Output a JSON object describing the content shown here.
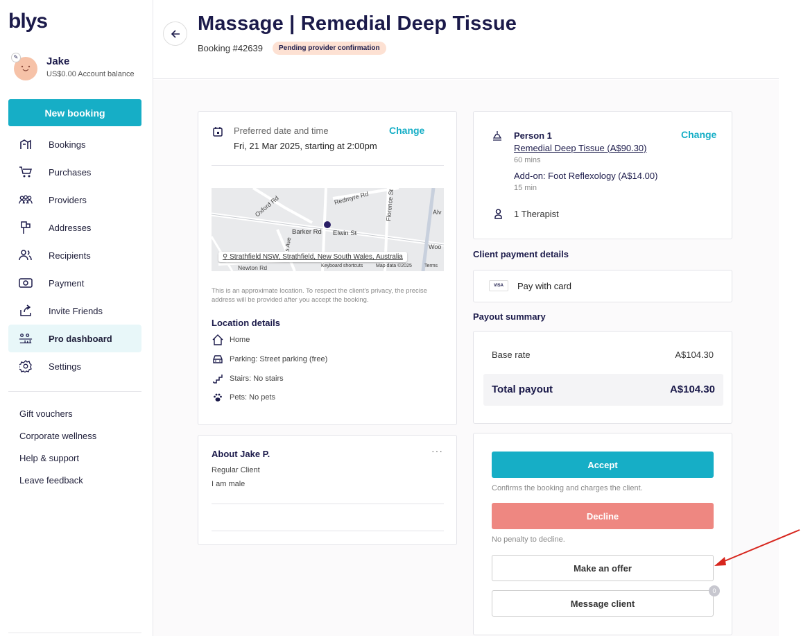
{
  "brand": {
    "logo": "blys",
    "accent": "#16aec6",
    "decline_color": "#ee8781"
  },
  "user": {
    "name": "Jake",
    "balance": "US$0.00 Account balance"
  },
  "sidebar": {
    "new_booking": "New booking",
    "items": [
      {
        "label": "Bookings",
        "icon": "bookings-icon"
      },
      {
        "label": "Purchases",
        "icon": "cart-icon"
      },
      {
        "label": "Providers",
        "icon": "providers-icon"
      },
      {
        "label": "Addresses",
        "icon": "mailbox-icon"
      },
      {
        "label": "Recipients",
        "icon": "users-icon"
      },
      {
        "label": "Payment",
        "icon": "payment-icon"
      },
      {
        "label": "Invite Friends",
        "icon": "share-icon"
      },
      {
        "label": "Pro dashboard",
        "icon": "dashboard-icon",
        "active": true
      },
      {
        "label": "Settings",
        "icon": "gear-icon"
      }
    ],
    "links": [
      "Gift vouchers",
      "Corporate wellness",
      "Help & support",
      "Leave feedback"
    ]
  },
  "header": {
    "title": "Massage | Remedial Deep Tissue",
    "booking_no": "Booking #42639",
    "status": "Pending provider confirmation"
  },
  "schedule": {
    "label": "Preferred date and time",
    "value": "Fri, 21 Mar 2025, starting at 2:00pm",
    "change": "Change"
  },
  "map": {
    "address": "Strathfield NSW, Strathfield, New South Wales, Australia",
    "streets": [
      "Oxford Rd",
      "Redmyre Rd",
      "Florence St",
      "Barker Rd",
      "Elwin St",
      "Alv",
      "Woo",
      "s Ave",
      "Newton Rd"
    ],
    "footer": [
      "Keyboard shortcuts",
      "Map data ©2025",
      "Terms"
    ]
  },
  "privacy_note": "This is an approximate location. To respect the client's privacy, the precise address will be provided after you accept the booking.",
  "location": {
    "title": "Location details",
    "rows": [
      {
        "icon": "home-icon",
        "text": "Home"
      },
      {
        "icon": "car-icon",
        "text": "Parking: Street parking (free)"
      },
      {
        "icon": "stairs-icon",
        "text": "Stairs: No stairs"
      },
      {
        "icon": "paw-icon",
        "text": "Pets: No pets"
      }
    ]
  },
  "about": {
    "title": "About Jake P.",
    "lines": [
      "Regular Client",
      "I am male"
    ],
    "menu": "···"
  },
  "service": {
    "person": "Person 1",
    "name": "Remedial Deep Tissue (A$90.30)",
    "duration": "60 mins",
    "addon": "Add-on: Foot Reflexology (A$14.00)",
    "addon_duration": "15 min",
    "therapists": "1 Therapist",
    "change": "Change"
  },
  "payment": {
    "title": "Client payment details",
    "method": "Pay with card",
    "card_brand": "VISA"
  },
  "payout": {
    "title": "Payout summary",
    "base_label": "Base rate",
    "base_value": "A$104.30",
    "total_label": "Total payout",
    "total_value": "A$104.30"
  },
  "actions": {
    "accept": "Accept",
    "accept_help": "Confirms the booking and charges the client.",
    "decline": "Decline",
    "decline_help": "No penalty to decline.",
    "offer": "Make an offer",
    "message": "Message client",
    "message_count": "0"
  }
}
